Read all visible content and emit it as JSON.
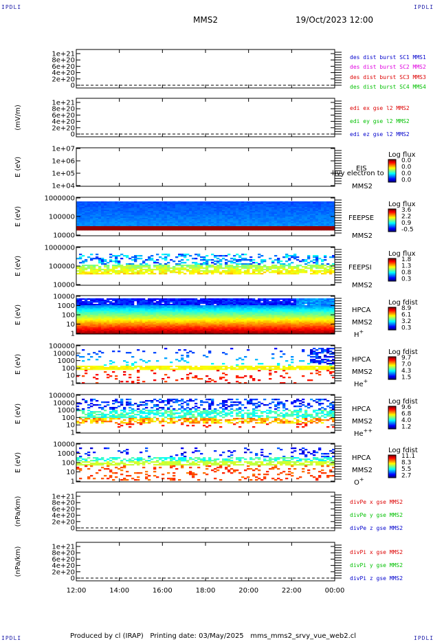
{
  "header": {
    "corner_tl": "IPDLI",
    "corner_tr": "IPDLI",
    "corner_bl": "IPDLI",
    "corner_br": "IPDLI",
    "mission": "MMS2",
    "date": "19/Oct/2023 12:00"
  },
  "footer": {
    "produced": "Produced by cl (IRAP)",
    "printing": "Printing date: 03/May/2025",
    "file": "mms_mms2_srvy_vue_web2.cl"
  },
  "x_axis": {
    "ticks": [
      "12:00",
      "14:00",
      "16:00",
      "18:00",
      "20:00",
      "22:00",
      "00:00"
    ],
    "range_hours": [
      12,
      24
    ]
  },
  "colors": {
    "legend_blue": "#0000cc",
    "legend_magenta": "#e000e0",
    "legend_red": "#dd0000",
    "legend_green": "#00c000"
  },
  "chart_data": [
    {
      "id": "p1",
      "type": "line",
      "ylabel": "",
      "yticks": [
        "0",
        "2e+20",
        "4e+20",
        "6e+20",
        "8e+20",
        "1e+21"
      ],
      "dashed_zero": true,
      "series": [
        {
          "name": "des dist burst SC1 MMS1",
          "color": "#0000cc"
        },
        {
          "name": "des dist burst SC2 MMS2",
          "color": "#e000e0"
        },
        {
          "name": "des dist burst SC3 MMS3",
          "color": "#dd0000"
        },
        {
          "name": "des dist burst SC4 MMS4",
          "color": "#00c000"
        }
      ]
    },
    {
      "id": "p2",
      "type": "line",
      "ylabel": "(mV/m)",
      "yticks": [
        "0",
        "2e+20",
        "4e+20",
        "6e+20",
        "8e+20",
        "1e+21"
      ],
      "dashed_zero": true,
      "series": [
        {
          "name": "edi ex gse l2 MMS2",
          "color": "#dd0000"
        },
        {
          "name": "edi ey gse l2 MMS2",
          "color": "#00c000"
        },
        {
          "name": "edi ez gse l2 MMS2",
          "color": "#0000cc"
        }
      ]
    },
    {
      "id": "p3",
      "type": "heatmap",
      "ylabel": "E (eV)",
      "yticks": [
        "1e+04",
        "1e+05",
        "1e+06",
        "1e+07"
      ],
      "labels": [
        "EIS",
        "MMS2"
      ],
      "overlay_text": "l)vy electron to",
      "colorbar": {
        "title": "Log flux",
        "ticks": [
          "0.0",
          "0.0",
          "0.0",
          "0.0"
        ]
      },
      "pattern": "empty"
    },
    {
      "id": "p4",
      "type": "heatmap",
      "ylabel": "E (eV)",
      "yticks": [
        "10000",
        "100000",
        "1000000"
      ],
      "labels": [
        "FEEPSE",
        "MMS2"
      ],
      "colorbar": {
        "title": "Log flux",
        "ticks": [
          "3.6",
          "2.2",
          "0.9",
          "-0.5"
        ]
      },
      "pattern": "feepse"
    },
    {
      "id": "p5",
      "type": "heatmap",
      "ylabel": "E (eV)",
      "yticks": [
        "10000",
        "100000",
        "1000000"
      ],
      "labels": [
        "FEEPSI",
        "MMS2"
      ],
      "colorbar": {
        "title": "Log flux",
        "ticks": [
          "1.8",
          "1.3",
          "0.8",
          "0.3"
        ]
      },
      "pattern": "feepsi"
    },
    {
      "id": "p6",
      "type": "heatmap",
      "ylabel": "E (eV)",
      "yticks": [
        "1",
        "10",
        "100",
        "1000",
        "10000"
      ],
      "labels": [
        "HPCA",
        "MMS2",
        "H+"
      ],
      "colorbar": {
        "title": "Log fdist",
        "ticks": [
          "8.9",
          "6.1",
          "3.2",
          "0.3"
        ]
      },
      "pattern": "hplus"
    },
    {
      "id": "p7",
      "type": "heatmap",
      "ylabel": "E (eV)",
      "yticks": [
        "1",
        "10",
        "100",
        "1000",
        "10000",
        "100000"
      ],
      "labels": [
        "HPCA",
        "MMS2",
        "He+"
      ],
      "colorbar": {
        "title": "Log fdist",
        "ticks": [
          "9.7",
          "7.0",
          "4.3",
          "1.5"
        ]
      },
      "pattern": "heplus"
    },
    {
      "id": "p8",
      "type": "heatmap",
      "ylabel": "E (eV)",
      "yticks": [
        "1",
        "10",
        "100",
        "1000",
        "10000",
        "100000"
      ],
      "labels": [
        "HPCA",
        "MMS2",
        "He++"
      ],
      "colorbar": {
        "title": "Log fdist",
        "ticks": [
          "9.6",
          "6.8",
          "4.0",
          "1.2"
        ]
      },
      "pattern": "hepp"
    },
    {
      "id": "p9",
      "type": "heatmap",
      "ylabel": "E (eV)",
      "yticks": [
        "1",
        "10",
        "100",
        "1000",
        "10000"
      ],
      "labels": [
        "HPCA",
        "MMS2",
        "O+"
      ],
      "colorbar": {
        "title": "Log fdist",
        "ticks": [
          "11.1",
          "8.3",
          "5.5",
          "2.7"
        ]
      },
      "pattern": "oplus"
    },
    {
      "id": "p10",
      "type": "line",
      "ylabel": "(nPa/km)",
      "yticks": [
        "0",
        "2e+20",
        "4e+20",
        "6e+20",
        "8e+20",
        "1e+21"
      ],
      "dashed_zero": true,
      "series": [
        {
          "name": "divPe x gse MMS2",
          "color": "#dd0000"
        },
        {
          "name": "divPe y gse MMS2",
          "color": "#00c000"
        },
        {
          "name": "divPe z gse MMS2",
          "color": "#0000cc"
        }
      ]
    },
    {
      "id": "p11",
      "type": "line",
      "ylabel": "(nPa/km)",
      "yticks": [
        "0",
        "2e+20",
        "4e+20",
        "6e+20",
        "8e+20",
        "1e+21"
      ],
      "dashed_zero": true,
      "series": [
        {
          "name": "divPi x gse MMS2",
          "color": "#dd0000"
        },
        {
          "name": "divPi y gse MMS2",
          "color": "#00c000"
        },
        {
          "name": "divPi z gse MMS2",
          "color": "#0000cc"
        }
      ]
    }
  ]
}
